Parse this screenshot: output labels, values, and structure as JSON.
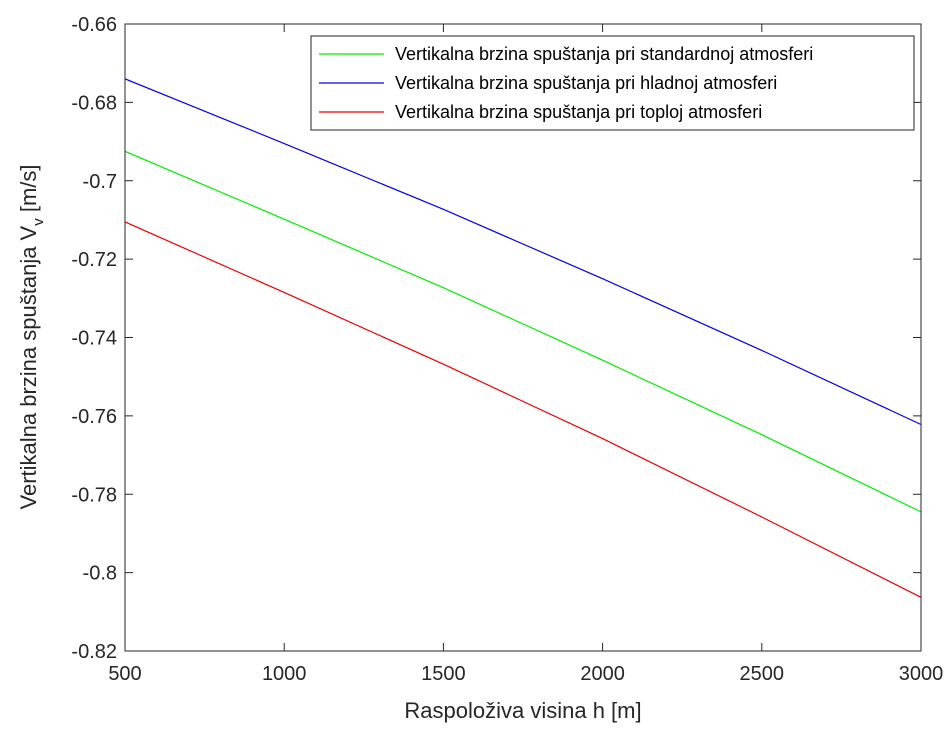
{
  "chart_data": {
    "type": "line",
    "xlabel": "Raspoloživa visina h [m]",
    "ylabel": "Vertikalna brzina spuštanja V",
    "ylabel_subscript": "v",
    "ylabel_unit": " [m/s]",
    "xlim": [
      500,
      3000
    ],
    "ylim": [
      -0.82,
      -0.66
    ],
    "xticks": [
      500,
      1000,
      1500,
      2000,
      2500,
      3000
    ],
    "xtick_labels": [
      "500",
      "1000",
      "1500",
      "2000",
      "2500",
      "3000"
    ],
    "yticks": [
      -0.66,
      -0.68,
      -0.7,
      -0.72,
      -0.74,
      -0.76,
      -0.78,
      -0.8,
      -0.82
    ],
    "ytick_labels": [
      "-0.66",
      "-0.68",
      "-0.7",
      "-0.72",
      "-0.74",
      "-0.76",
      "-0.78",
      "-0.8",
      "-0.82"
    ],
    "grid": false,
    "legend_position": "top-right",
    "series": [
      {
        "name": "Vertikalna brzina spuštanja pri standardnoj atmosferi",
        "color": "#00ee00",
        "x": [
          500,
          1000,
          1500,
          2000,
          2500,
          3000
        ],
        "values": [
          -0.6925,
          -0.7098,
          -0.7273,
          -0.7458,
          -0.7648,
          -0.7845
        ]
      },
      {
        "name": "Vertikalna brzina spuštanja pri hladnoj atmosferi",
        "color": "#0000ee",
        "x": [
          500,
          1000,
          1500,
          2000,
          2500,
          3000
        ],
        "values": [
          -0.674,
          -0.6905,
          -0.7073,
          -0.725,
          -0.7433,
          -0.7622
        ]
      },
      {
        "name": "Vertikalna brzina spuštanja pri toploj atmosferi",
        "color": "#ee0000",
        "x": [
          500,
          1000,
          1500,
          2000,
          2500,
          3000
        ],
        "values": [
          -0.7105,
          -0.7285,
          -0.7468,
          -0.7658,
          -0.7858,
          -0.8063
        ]
      }
    ]
  }
}
